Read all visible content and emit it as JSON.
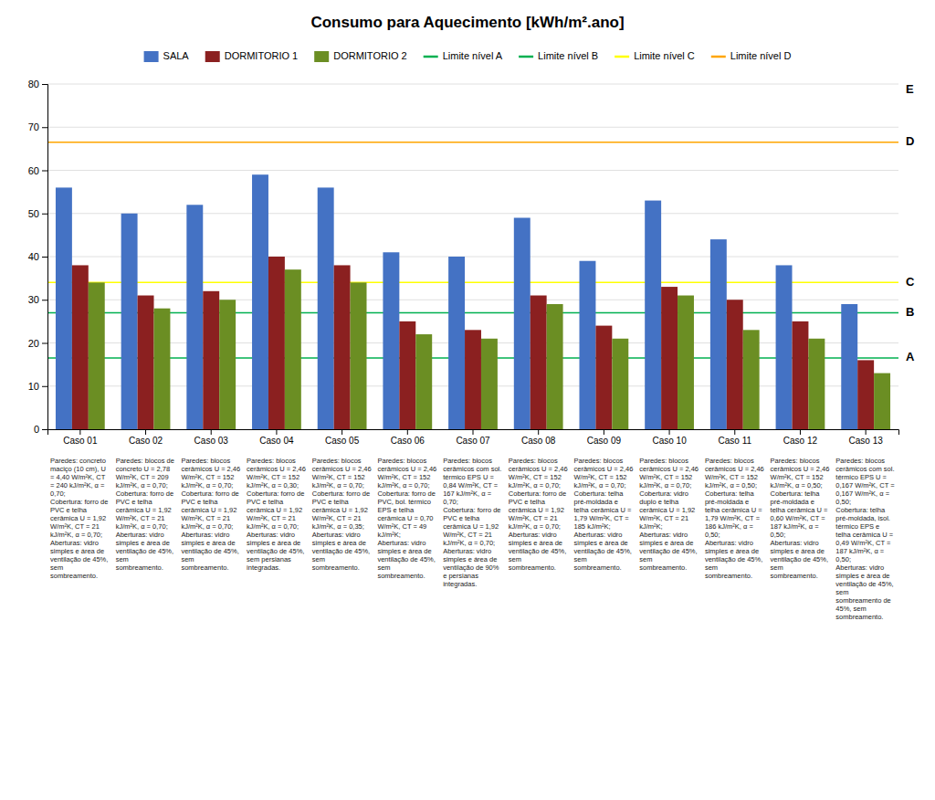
{
  "chart_data": {
    "type": "bar",
    "title": "Consumo para Aquecimento [kWh/m².ano]",
    "categories": [
      "Caso 01",
      "Caso 02",
      "Caso 03",
      "Caso 04",
      "Caso 05",
      "Caso 06",
      "Caso 07",
      "Caso 08",
      "Caso 09",
      "Caso 10",
      "Caso 11",
      "Caso 12",
      "Caso 13"
    ],
    "series": [
      {
        "name": "SALA",
        "color": "#4472C4",
        "values": [
          56,
          50,
          52,
          59,
          56,
          41,
          40,
          49,
          39,
          53,
          44,
          38,
          29
        ]
      },
      {
        "name": "DORMITORIO 1",
        "color": "#8B2020",
        "values": [
          38,
          31,
          32,
          40,
          38,
          25,
          23,
          31,
          24,
          33,
          30,
          25,
          16
        ]
      },
      {
        "name": "DORMITORIO 2",
        "color": "#6B8E23",
        "values": [
          34,
          28,
          30,
          37,
          34,
          22,
          21,
          29,
          21,
          31,
          23,
          21,
          13
        ]
      }
    ],
    "reference_lines": [
      {
        "name": "Limite nível A",
        "label": "A",
        "value": 16.5,
        "color": "#00B050"
      },
      {
        "name": "Limite nível B",
        "label": "B",
        "value": 27.0,
        "color": "#00B050"
      },
      {
        "name": "Limite nível C",
        "label": "C",
        "value": 34.0,
        "color": "#FFFF00"
      },
      {
        "name": "Limite nível D",
        "label": "D",
        "value": 66.5,
        "color": "#FFA500"
      }
    ],
    "upper_label": "E",
    "ylim": [
      0,
      80
    ],
    "yticks": [
      0,
      10,
      20,
      30,
      40,
      50,
      60,
      70,
      80
    ],
    "grid": true,
    "legend": "top",
    "annotations": [
      "Paredes: concreto maciço (10 cm), U = 4,40 W/m²K, CT = 240 kJ/m²K, α = 0,70;\nCobertura: forro de PVC e telha cerâmica U = 1,92 W/m²K, CT = 21 kJ/m²K, α = 0,70;\nAberturas: vidro simples  e área de ventilação de 45%, sem sombreamento.",
      "Paredes: blocos de concreto U = 2,78 W/m²K, CT = 209 kJ/m²K, α = 0,70;\nCobertura: forro de PVC e telha cerâmica U = 1,92 W/m²K, CT = 21 kJ/m²K, α = 0,70;\nAberturas: vidro simples  e área de ventilação de 45%, sem sombreamento.",
      "Paredes: blocos cerâmicos U = 2,46 W/m²K, CT = 152 kJ/m²K, α = 0,70;\nCobertura: forro de PVC e telha cerâmica U = 1,92 W/m²K, CT = 21 kJ/m²K, α = 0,70;\nAberturas: vidro simples e área de ventilação de 45%, sem sombreamento.",
      "Paredes: blocos cerâmicos U = 2,46 W/m²K, CT = 152 kJ/m²K, α = 0,30;\nCobertura: forro de PVC e telha cerâmica U = 1,92 W/m²K, CT = 21 kJ/m²K, α = 0,70;\nAberturas: vidro simples e área de ventilação de 45%, sem persianas integradas.",
      "Paredes: blocos cerâmicos U = 2,46 W/m²K, CT = 152 kJ/m²K, α = 0,70;\nCobertura: forro de PVC e telha cerâmica U = 1,92 W/m²K, CT = 21 kJ/m²K, α = 0,35;\nAberturas: vidro simples e área de ventilação de 45%, sem sombreamento.",
      "Paredes: blocos cerâmicos U = 2,46 W/m²K, CT = 152 kJ/m²K, α = 0,70;\nCobertura: forro de PVC, bol. térmico EPS e telha cerâmica U = 0,70 W/m²K, CT = 49 kJ/m²K;\nAberturas: vidro simples e área de ventilação de 45%, sem sombreamento.",
      "Paredes: blocos cerâmicos com sol. térmico EPS U = 0,84 W/m²K, CT = 167 kJ/m²K, α = 0,70;\nCobertura: forro de PVC e telha cerâmica U = 1,92 W/m²K, CT = 21 kJ/m²K, α = 0,70;\nAberturas: vidro simples e área de ventilação de 90% e persianas integradas.",
      "Paredes: blocos cerâmicos U = 2,46 W/m²K, CT = 152 kJ/m²K, α = 0,70;\nCobertura: forro de PVC e telha cerâmica U = 1,92 W/m²K, CT = 21 kJ/m²K, α = 0,70;\nAberturas: vidro simples e área de ventilação de 45%, sem sombreamento.",
      "Paredes: blocos cerâmicos U = 2,46 W/m²K, CT = 152 kJ/m²K, α = 0,70;\nCobertura: telha pré-moldada e telha cerâmica U = 1,79 W/m²K, CT = 185 kJ/m²K;\nAberturas: vidro simples e área de ventilação de 45%, sem sombreamento.",
      "Paredes: blocos cerâmicos U = 2,46 W/m²K, CT = 152 kJ/m²K, α = 0,70;\nCobertura: vidro duplo  e telha cerâmica U = 1,92 W/m²K, CT = 21 kJ/m²K;\nAberturas: vidro simples e área de ventilação de 45%, sem sombreamento.",
      "Paredes: blocos cerâmicos U = 2,46 W/m²K, CT = 152 kJ/m²K, α = 0,50;\nCobertura: telha pré-moldada e telha cerâmica U = 1,79 W/m²K, CT = 186 kJ/m²K, α = 0,50;\nAberturas: vidro simples e área de ventilação de 45%, sem sombreamento.",
      "Paredes: blocos cerâmicos U = 2,46 W/m²K, CT = 152 kJ/m²K, α = 0,50;\nCobertura: telha pré-moldada e telha cerâmica U = 0,60 W/m²K, CT = 187 kJ/m²K, α = 0,50;\nAberturas: vidro simples e área de ventilação de 45%, sem sombreamento.",
      "Paredes: blocos cerâmicos com sol. térmico EPS U = 0,167 W/m²K, CT = 0,167 W/m²K, α = 0,50;\nCobertura: telha pré-moldada, isol. térmico EPS e telha cerâmica U = 0,49 W/m²K, CT = 187 kJ/m²K, α = 0,50;\nAberturas: vidro simples  e área de ventilação de 45%, sem sombreamento de 45%, sem sombreamento."
    ]
  }
}
